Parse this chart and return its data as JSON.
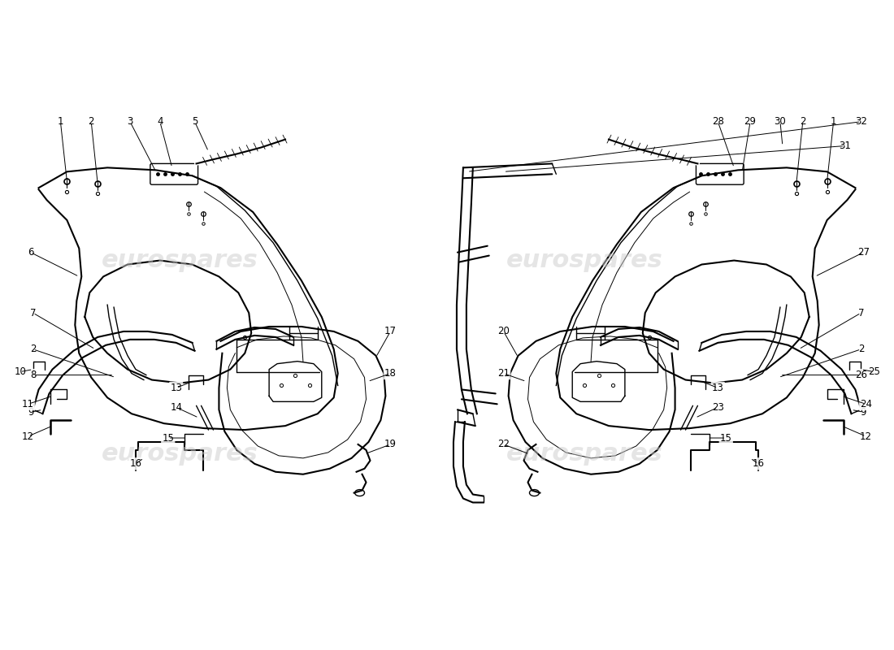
{
  "background_color": "#ffffff",
  "line_color": "#000000",
  "watermark_text": "eurospares",
  "watermark_color": "#cccccc",
  "fig_width": 11.0,
  "fig_height": 8.0,
  "label_fontsize": 8.5
}
